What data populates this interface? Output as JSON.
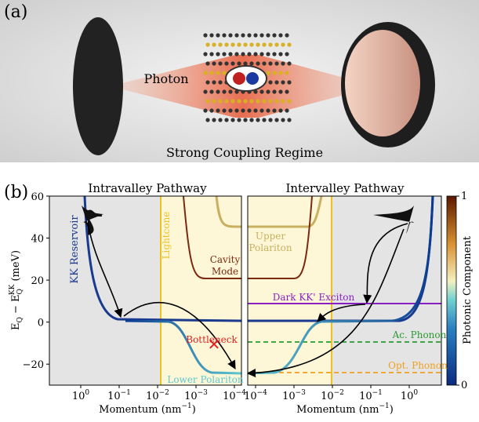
{
  "panel_a": {
    "label": "(a)",
    "photon": "Photon",
    "caption": "Strong Coupling Regime"
  },
  "panel_b": {
    "label": "(b)",
    "left_title": "Intravalley Pathway",
    "right_title": "Intervalley Pathway",
    "ylabel": {
      "e1": "E",
      "s1": "Q",
      "mid": " − E",
      "s2": "Q",
      "sup": "KK",
      "unit": " (meV)"
    },
    "ylim": [
      -30,
      60
    ],
    "yticks": [
      {
        "value": 60,
        "label": "60"
      },
      {
        "value": 40,
        "label": "40"
      },
      {
        "value": 20,
        "label": "20"
      },
      {
        "value": 0,
        "label": "0"
      },
      {
        "value": -20,
        "label": "−20"
      }
    ],
    "left_xticks": [
      {
        "base": "10",
        "exp": "0"
      },
      {
        "base": "10",
        "exp": "−1"
      },
      {
        "base": "10",
        "exp": "−2"
      },
      {
        "base": "10",
        "exp": "−3"
      },
      {
        "base": "10",
        "exp": "−4"
      }
    ],
    "right_xticks": [
      {
        "base": "10",
        "exp": "−4"
      },
      {
        "base": "10",
        "exp": "−3"
      },
      {
        "base": "10",
        "exp": "−2"
      },
      {
        "base": "10",
        "exp": "−1"
      },
      {
        "base": "10",
        "exp": "0"
      }
    ],
    "xlabel": {
      "text": "Momentum (nm",
      "sup": "−1",
      "close": ")"
    },
    "labels": {
      "kk_reservoir": "KK Reservoir",
      "lightcone": "Lightcone",
      "cavity_mode": [
        "Cavity",
        "Mode"
      ],
      "upper_polariton": [
        "Upper",
        "Polariton"
      ],
      "bottleneck": "Bottleneck",
      "lower_polariton": "Lower Polariton",
      "dark_exciton": "Dark KK' Exciton",
      "ac_phonon": "Ac. Phonon",
      "opt_phonon": "Opt. Phonon"
    },
    "colorbar": {
      "label": "Photonic Component",
      "lim": [
        0,
        1
      ],
      "ticks": [
        {
          "value": 1,
          "label": "1"
        },
        {
          "value": 0,
          "label": "0"
        }
      ]
    }
  }
}
